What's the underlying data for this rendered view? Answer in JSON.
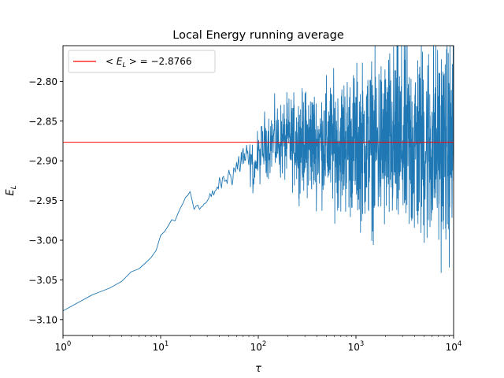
{
  "chart_data": {
    "type": "line",
    "title": "Local Energy running average",
    "xlabel": "τ",
    "ylabel_main": "E",
    "ylabel_sub": "L",
    "xscale": "log",
    "xlim": [
      1,
      10000
    ],
    "ylim": [
      -3.12,
      -2.755
    ],
    "grid": false,
    "legend_position": "top-left",
    "x_tick_labels": [
      {
        "base": "10",
        "exp": "0",
        "value": 1
      },
      {
        "base": "10",
        "exp": "1",
        "value": 10
      },
      {
        "base": "10",
        "exp": "2",
        "value": 100
      },
      {
        "base": "10",
        "exp": "3",
        "value": 1000
      },
      {
        "base": "10",
        "exp": "4",
        "value": 10000
      }
    ],
    "y_ticks": [
      -2.8,
      -2.85,
      -2.9,
      -2.95,
      -3.0,
      -3.05,
      -3.1
    ],
    "y_tick_labels": [
      "−2.80",
      "−2.85",
      "−2.90",
      "−2.95",
      "−3.00",
      "−3.05",
      "−3.10"
    ],
    "series": [
      {
        "color": "#1f77b4",
        "anchors": [
          [
            1,
            -3.089
          ],
          [
            2,
            -3.07
          ],
          [
            3,
            -3.061
          ],
          [
            4,
            -3.053
          ],
          [
            5,
            -3.04
          ],
          [
            6,
            -3.035
          ],
          [
            7,
            -3.03
          ],
          [
            8,
            -3.022
          ],
          [
            9,
            -3.013
          ],
          [
            10,
            -2.995
          ],
          [
            12,
            -2.98
          ],
          [
            14,
            -2.976
          ],
          [
            16,
            -2.96
          ],
          [
            18,
            -2.945
          ],
          [
            20,
            -2.938
          ],
          [
            22,
            -2.955
          ],
          [
            25,
            -2.96
          ],
          [
            30,
            -2.952
          ],
          [
            40,
            -2.93
          ],
          [
            55,
            -2.915
          ],
          [
            70,
            -2.895
          ],
          [
            90,
            -2.91
          ],
          [
            120,
            -2.875
          ],
          [
            200,
            -2.875
          ],
          [
            500,
            -2.878
          ],
          [
            1000,
            -2.878
          ],
          [
            3000,
            -2.88
          ],
          [
            10000,
            -2.88
          ]
        ],
        "noise_bands": [
          [
            1,
            0
          ],
          [
            40,
            0.004
          ],
          [
            70,
            0.012
          ],
          [
            120,
            0.02
          ],
          [
            300,
            0.03
          ],
          [
            1000,
            0.045
          ],
          [
            3000,
            0.06
          ],
          [
            10000,
            0.065
          ]
        ]
      },
      {
        "name_main": "< E",
        "name_sub": "L",
        "name_tail": " > = −2.8766",
        "type": "hline",
        "y": -2.8766,
        "color": "#ff0000"
      }
    ]
  }
}
